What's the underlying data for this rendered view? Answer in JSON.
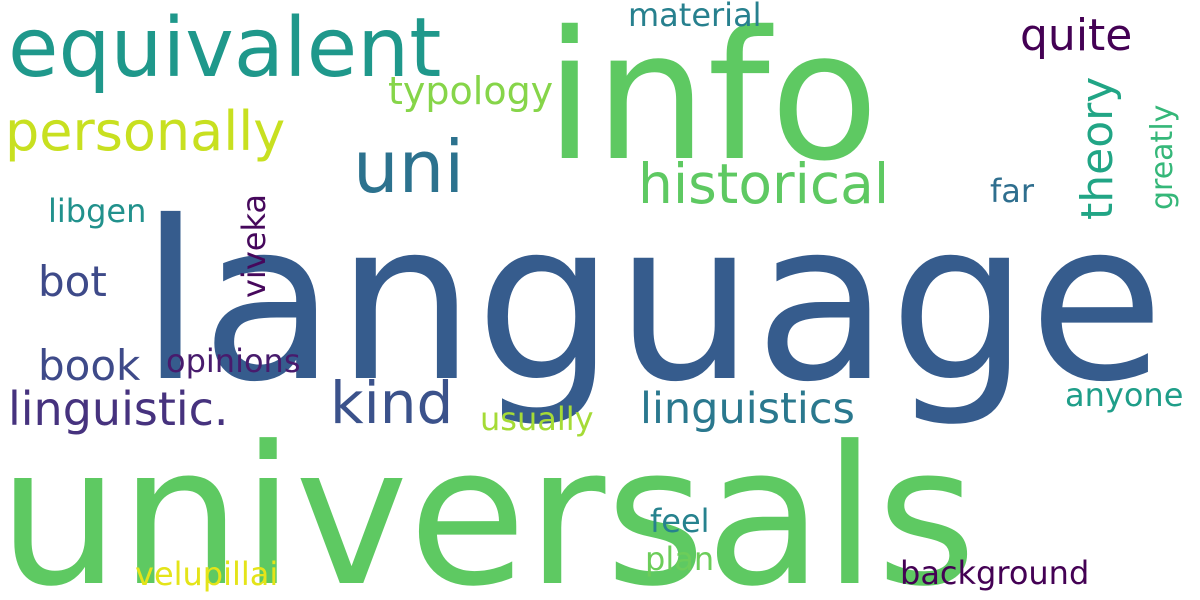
{
  "words": [
    {
      "text": "language",
      "color": "#365c8d"
    },
    {
      "text": "universals",
      "color": "#5ec962"
    },
    {
      "text": "info",
      "color": "#5ec962"
    },
    {
      "text": "equivalent",
      "color": "#1f988b"
    },
    {
      "text": "personally",
      "color": "#c8e020"
    },
    {
      "text": "uni",
      "color": "#2c728e"
    },
    {
      "text": "historical",
      "color": "#5ec962"
    },
    {
      "text": "kind",
      "color": "#3b528b"
    },
    {
      "text": "linguistic.",
      "color": "#46327e"
    },
    {
      "text": "linguistics",
      "color": "#2a788e"
    },
    {
      "text": "quite",
      "color": "#440154"
    },
    {
      "text": "theory",
      "color": "#21a585"
    },
    {
      "text": "typology",
      "color": "#86d549"
    },
    {
      "text": "material",
      "color": "#27808e"
    },
    {
      "text": "viveka",
      "color": "#46085c"
    },
    {
      "text": "book",
      "color": "#3e4a89"
    },
    {
      "text": "bot",
      "color": "#3e4a89"
    },
    {
      "text": "libgen",
      "color": "#21918c"
    },
    {
      "text": "opinions",
      "color": "#481b6d"
    },
    {
      "text": "usually",
      "color": "#a5db36"
    },
    {
      "text": "far",
      "color": "#2e6e8e"
    },
    {
      "text": "greatly",
      "color": "#35b779"
    },
    {
      "text": "anyone",
      "color": "#1f9e89"
    },
    {
      "text": "feel",
      "color": "#26828e"
    },
    {
      "text": "plan",
      "color": "#6ccd5a"
    },
    {
      "text": "velupillai",
      "color": "#e4e419"
    },
    {
      "text": "background",
      "color": "#440154"
    }
  ]
}
